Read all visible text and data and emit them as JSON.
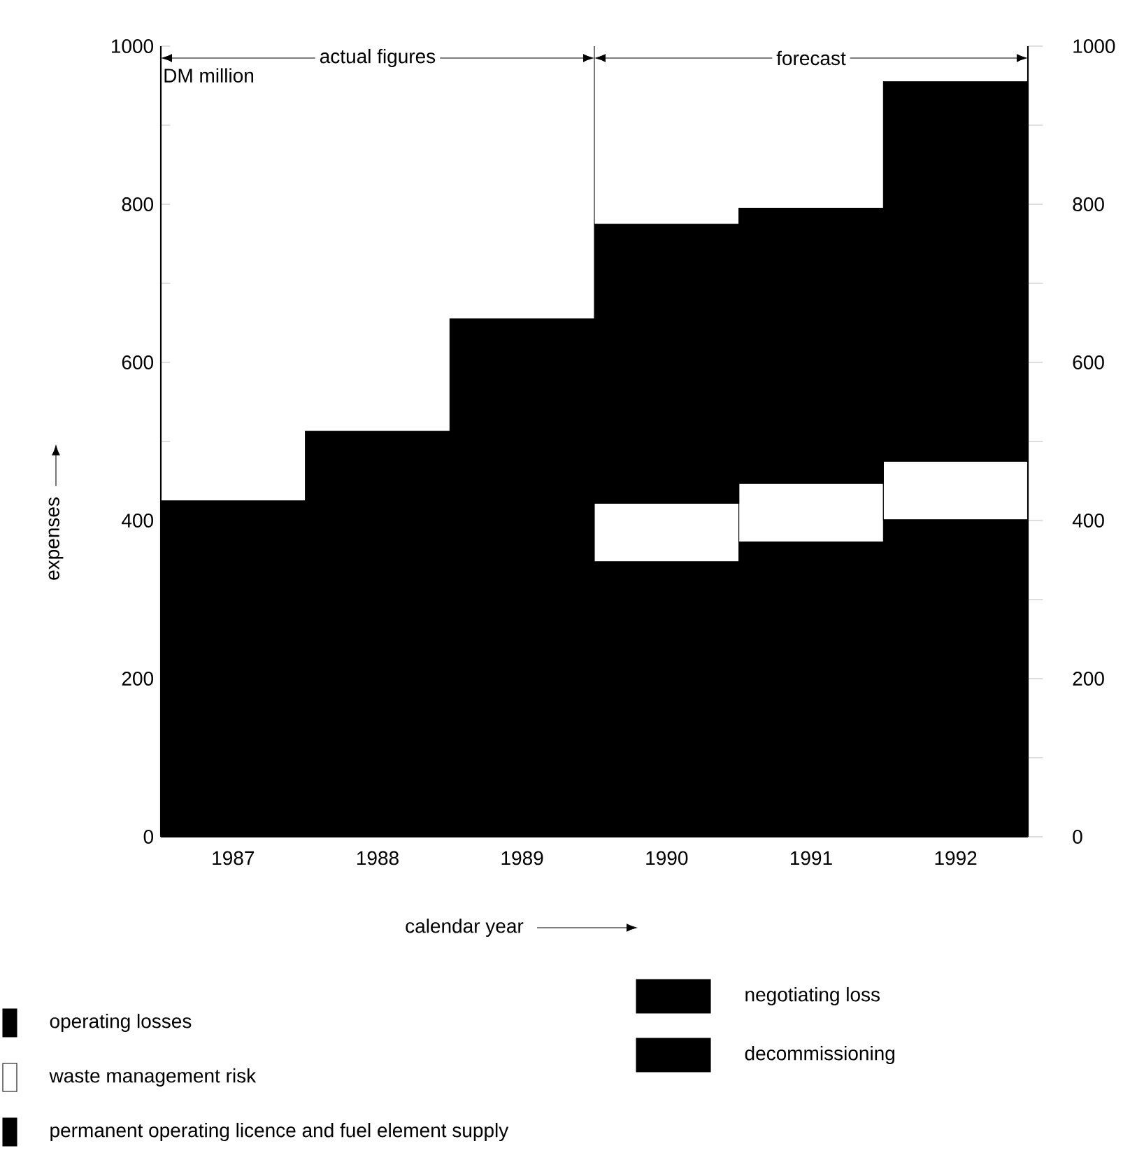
{
  "chart_data": {
    "type": "bar",
    "stacked": true,
    "categories": [
      "1987",
      "1988",
      "1989",
      "1990",
      "1991",
      "1992"
    ],
    "series": [
      {
        "name": "operating losses",
        "color": "#000000",
        "values": [
          425,
          513,
          655,
          348,
          373,
          401
        ]
      },
      {
        "name": "waste management risk",
        "color": "#ffffff",
        "values": [
          null,
          null,
          null,
          74,
          74,
          74
        ]
      },
      {
        "name": "permanent operating licence and fuel element supply",
        "color": "#000000",
        "values": [
          null,
          null,
          null,
          353,
          348,
          480
        ]
      },
      {
        "name": "negotiating loss",
        "color": "#000000",
        "values": [
          null,
          null,
          null,
          null,
          null,
          null
        ]
      },
      {
        "name": "decommissioning",
        "color": "#000000",
        "values": [
          null,
          null,
          null,
          null,
          null,
          null
        ]
      }
    ],
    "xlabel": "calendar year",
    "ylabel": "expenses",
    "ylim": [
      0,
      1000
    ],
    "yticks": [
      0,
      200,
      400,
      600,
      800,
      1000
    ],
    "y2lim": [
      0,
      1000
    ],
    "y2ticks": [
      0,
      200,
      400,
      600,
      800,
      1000
    ],
    "annotations": [
      "DM million",
      "actual figures",
      "forecast"
    ],
    "legend": "bottom",
    "grid": false
  }
}
